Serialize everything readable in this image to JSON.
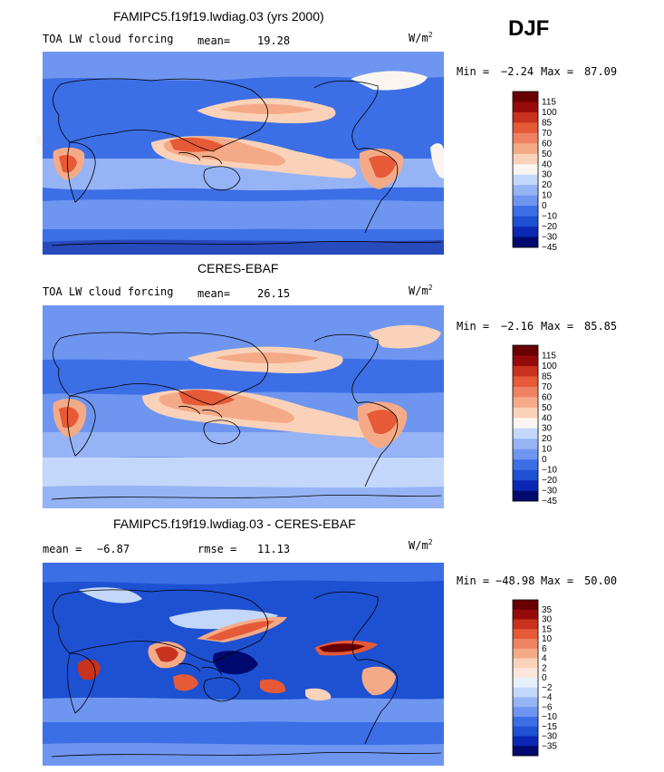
{
  "season": "DJF",
  "palettes": {
    "abs": [
      "#000a6e",
      "#0a28b4",
      "#1e50d2",
      "#3c6ee6",
      "#6e96f0",
      "#96b4f5",
      "#c3d7fa",
      "#faf5f0",
      "#fad2b9",
      "#f5aa87",
      "#f08264",
      "#e65a37",
      "#c8321e",
      "#960a0a",
      "#690000"
    ],
    "diff": [
      "#000a6e",
      "#0a28b4",
      "#1e50d2",
      "#3c6ee6",
      "#6e96f0",
      "#96b4f5",
      "#c3d7fa",
      "#e6f0fa",
      "#fae6dc",
      "#fad2b9",
      "#f5aa87",
      "#f08264",
      "#e65a37",
      "#c8321e",
      "#960a0a",
      "#690000"
    ]
  },
  "chart_data": [
    {
      "type": "heatmap",
      "title": "FAMIPC5.f19f19.lwdiag.03 (yrs 2000)",
      "field_label": "TOA LW cloud forcing",
      "units_base": "W/m",
      "units_exp": "2",
      "stats": [
        {
          "label": "mean=",
          "value": "19.28"
        }
      ],
      "min_max": {
        "min_label": "Min =",
        "min": "−2.24",
        "max_label": "Max =",
        "max": "87.09"
      },
      "colorbar_levels": [
        "115",
        "100",
        "85",
        "70",
        "60",
        "50",
        "40",
        "30",
        "20",
        "10",
        "0",
        "−10",
        "−20",
        "−30",
        "−45"
      ],
      "palette": "abs"
    },
    {
      "type": "heatmap",
      "title": "CERES-EBAF",
      "field_label": "TOA LW cloud forcing",
      "units_base": "W/m",
      "units_exp": "2",
      "stats": [
        {
          "label": "mean=",
          "value": "26.15"
        }
      ],
      "min_max": {
        "min_label": "Min =",
        "min": "−2.16",
        "max_label": "Max =",
        "max": "85.85"
      },
      "colorbar_levels": [
        "115",
        "100",
        "85",
        "70",
        "60",
        "50",
        "40",
        "30",
        "20",
        "10",
        "0",
        "−10",
        "−20",
        "−30",
        "−45"
      ],
      "palette": "abs"
    },
    {
      "type": "heatmap",
      "title": "FAMIPC5.f19f19.lwdiag.03 - CERES-EBAF",
      "field_label": "",
      "units_base": "W/m",
      "units_exp": "2",
      "stats": [
        {
          "label": "mean =",
          "value": "−6.87"
        },
        {
          "label": "rmse =",
          "value": "11.13"
        }
      ],
      "min_max": {
        "min_label": "Min =",
        "min": "−48.98",
        "max_label": "Max =",
        "max": "50.00"
      },
      "colorbar_levels": [
        "35",
        "30",
        "15",
        "10",
        "6",
        "4",
        "2",
        "0",
        "−2",
        "−4",
        "−6",
        "−10",
        "−15",
        "−30",
        "−35"
      ],
      "palette": "diff"
    }
  ]
}
